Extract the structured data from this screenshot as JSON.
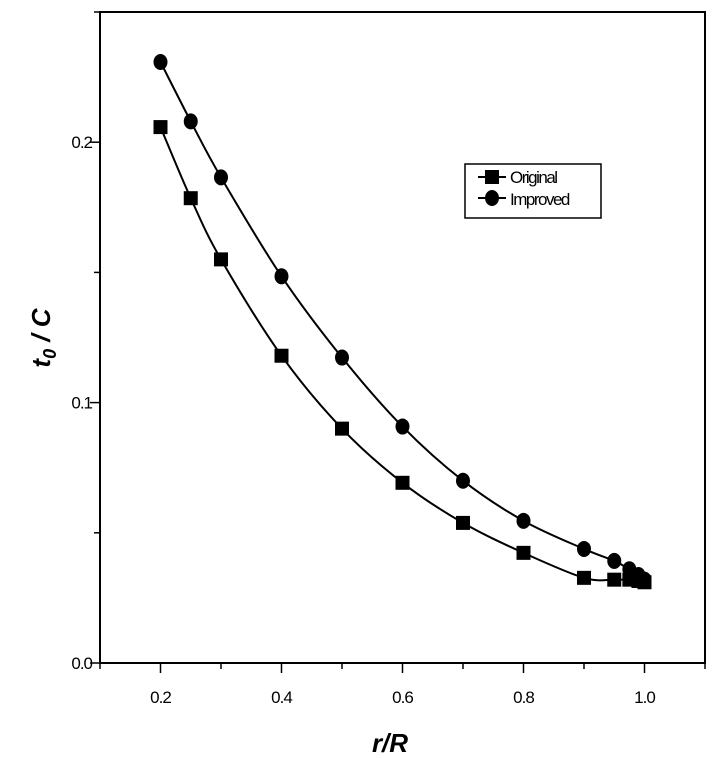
{
  "chart_data": {
    "type": "line",
    "xlabel": "r/R",
    "ylabel_main": "t",
    "ylabel_sub": "0",
    "ylabel_rest": " / C",
    "xlim": [
      0.1,
      1.1
    ],
    "ylim": [
      0.0,
      0.25
    ],
    "x_ticks": [
      0.2,
      0.4,
      0.6,
      0.8,
      1.0
    ],
    "x_tick_labels": [
      "0.2",
      "0.4",
      "0.6",
      "0.8",
      "1.0"
    ],
    "y_ticks": [
      0.0,
      0.1,
      0.2
    ],
    "y_tick_labels": [
      "0.0",
      "0.1",
      "0.2"
    ],
    "grid": false,
    "legend_position": "top-right",
    "x": [
      0.2,
      0.25,
      0.3,
      0.4,
      0.5,
      0.6,
      0.7,
      0.8,
      0.9,
      0.95,
      0.975,
      0.99,
      1.0
    ],
    "series": [
      {
        "name": "Original",
        "marker": "square",
        "values": [
          0.2058,
          0.1785,
          0.155,
          0.118,
          0.09,
          0.0692,
          0.0538,
          0.0423,
          0.0327,
          0.032,
          0.032,
          0.0315,
          0.031
        ]
      },
      {
        "name": "Improved",
        "marker": "circle",
        "values": [
          0.2308,
          0.208,
          0.1865,
          0.1485,
          0.1173,
          0.0908,
          0.07,
          0.0546,
          0.0438,
          0.0392,
          0.036,
          0.0338,
          0.032
        ]
      }
    ],
    "color": "#000000"
  }
}
